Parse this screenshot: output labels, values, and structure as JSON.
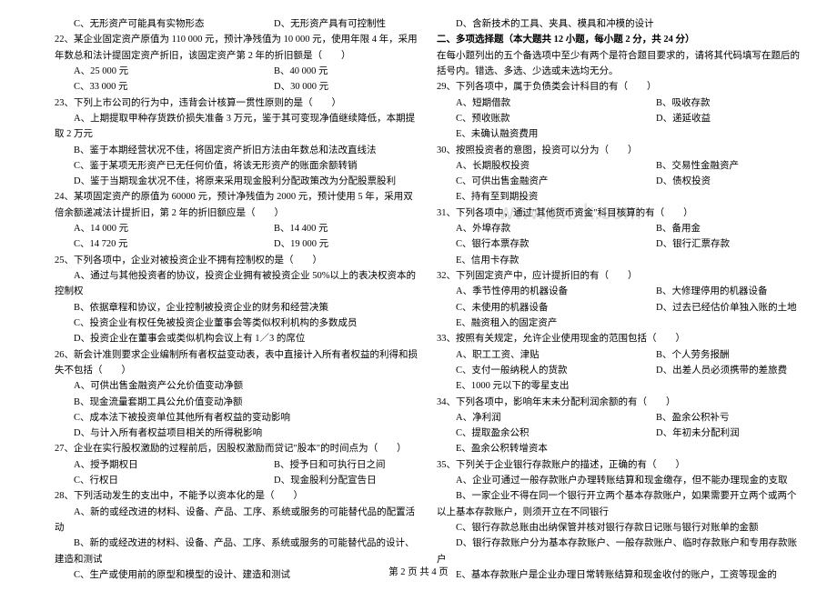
{
  "watermark": "www.zxxk.com",
  "footer": "第 2 页 共 4 页",
  "left": {
    "l1": "C、无形资产可能具有实物形态",
    "l1b": "D、无形资产具有可控制性",
    "q22": "22、某企业固定资产原值为 110 000 元，预计净残值为 10 000 元，使用年限 4 年，采用年数总和法计提固定资产折旧，该固定资产第 2 年的折旧额是（　　）",
    "q22a": "A、25 000 元",
    "q22b": "B、40 000 元",
    "q22c": "C、33 000 元",
    "q22d": "D、30 000 元",
    "q23": "23、下列上市公司的行为中，违背会计核算一贯性原则的是（　　）",
    "q23a": "A、上期提取甲种存货跌价损失准备 3 万元，鉴于其可变现净值继续降低，本期提取 2 万元",
    "q23b": "B、鉴于本期经营状况不佳，将固定资产折旧方法由年数总和法改直线法",
    "q23c": "C、鉴于某项无形资产已无任何价值，将该无形资产的账面余额转销",
    "q23d": "D、鉴于当期现金状况不佳，将原来采用现金股利分配政策改为分配股票股利",
    "q24": "24、某项固定资产的原值为 60000 元，预计净残值为 2000 元，预计使用 5 年，采用双倍余额递减法计提折旧，第 2 年的折旧额应是（　　）",
    "q24a": "A、14 000 元",
    "q24b": "B、14 400 元",
    "q24c": "C、14 720 元",
    "q24d": "D、19 000 元",
    "q25": "25、下列各项中，企业对被投资企业不拥有控制权的是（　　）",
    "q25a": "A、通过与其他投资者的协议，投资企业拥有被投资企业 50%以上的表决权资本的控制权",
    "q25b": "B、依据章程和协议，企业控制被投资企业的财务和经营决策",
    "q25c": "C、投资企业有权任免被投资企业董事会等类似权利机构的多数成员",
    "q25d": "D、投资企业在董事会或类似机构会议上有 1／3 的席位",
    "q26": "26、新会计准则要求企业编制所有者权益变动表，表中直接计入所有者权益的利得和损失不包括（　　）",
    "q26a": "A、可供出售金融资产公允价值变动净额",
    "q26b": "B、现金流量套期工具公允价值变动净额",
    "q26c": "C、成本法下被投资单位其他所有者权益的变动影响",
    "q26d": "D、与计入所有者权益项目相关的所得税影响",
    "q27": "27、企业在实行股权激励的过程前后，因股权激励而贷记\"股本\"的时间点为（　　）",
    "q27a": "A、授予期权日",
    "q27b": "B、授予日和可执行日之间",
    "q27c": "C、行权日",
    "q27d": "D、现金股利分配宣告日",
    "q28": "28、下列活动发生的支出中，不能予以资本化的是（　　）",
    "q28a": "A、新的或经改进的材料、设备、产品、工序、系统或服务的可能替代品的配置活动",
    "q28b": "B、新的或经改进的材料、设备、产品、工序、系统或服务的可能替代品的设计、建造和测试",
    "q28c": "C、生产或使用前的原型和模型的设计、建造和测试"
  },
  "right": {
    "r1": "D、含新技术的工具、夹具、模具和冲模的设计",
    "section2": "二、多项选择题（本大题共 12 小题，每小题 2 分，共 24 分）",
    "instr": "在每小题列出的五个备选项中至少有两个是符合题目要求的，请将其代码填写在题后的括号内。错选、多选、少选或未选均无分。",
    "q29": "29、下列各项中，属于负债类会计科目的有（　　）",
    "q29a": "A、短期借款",
    "q29b": "B、吸收存款",
    "q29c": "C、预收账款",
    "q29d": "D、递延收益",
    "q29e": "E、未确认融资费用",
    "q30": "30、按照投资者的意图，投资可以分为（　　）",
    "q30a": "A、长期股权投资",
    "q30b": "B、交易性金融资产",
    "q30c": "C、可供出售金融资产",
    "q30d": "D、债权投资",
    "q30e": "E、持有至到期投资",
    "q31": "31、下列各项中，通过\"其他货币资金\"科目核算的有（　　）",
    "q31a": "A、外埠存款",
    "q31b": "B、备用金",
    "q31c": "C、银行本票存款",
    "q31d": "D、银行汇票存款",
    "q31e": "E、信用卡存款",
    "q32": "32、下列固定资产中，应计提折旧的有（　　）",
    "q32a": "A、季节性停用的机器设备",
    "q32b": "B、大修理停用的机器设备",
    "q32c": "C、未使用的机器设备",
    "q32d": "D、过去已经估价单独入账的土地",
    "q32e": "E、融资租入的固定资产",
    "q33": "33、按照有关规定，允许企业使用现金的范围包括（　　）",
    "q33a": "A、职工工资、津贴",
    "q33b": "B、个人劳务报酬",
    "q33c": "C、支付一般纳税人的货款",
    "q33d": "D、出差人员必须携带的差旅费",
    "q33e": "E、1000 元以下的零星支出",
    "q34": "34、下列各项中，影响年末未分配利润余额的有（　　）",
    "q34a": "A、净利润",
    "q34b": "B、盈余公积补亏",
    "q34c": "C、提取盈余公积",
    "q34d": "D、年初未分配利润",
    "q34e": "E、盈余公积转增资本",
    "q35": "35、下列关于企业银行存款账户的描述，正确的有（　　）",
    "q35a": "A、企业可通过一般存款账户办理转账结算和现金缴存，但不能办理现金的支取",
    "q35b": "B、一家企业不得在同一个银行开立两个基本存款账户，如果需要开立两个或两个以上基本存款账户，则须开立在不同银行",
    "q35c": "C、银行存款总账由出纳保管并核对银行存款日记账与银行对账单的金额",
    "q35d": "D、银行存款账户分为基本存款账户、一般存款账户、临时存款账户和专用存款账户",
    "q35e": "E、基本存款账户是企业办理日常转账结算和现金收付的账户，工资等现金的"
  }
}
